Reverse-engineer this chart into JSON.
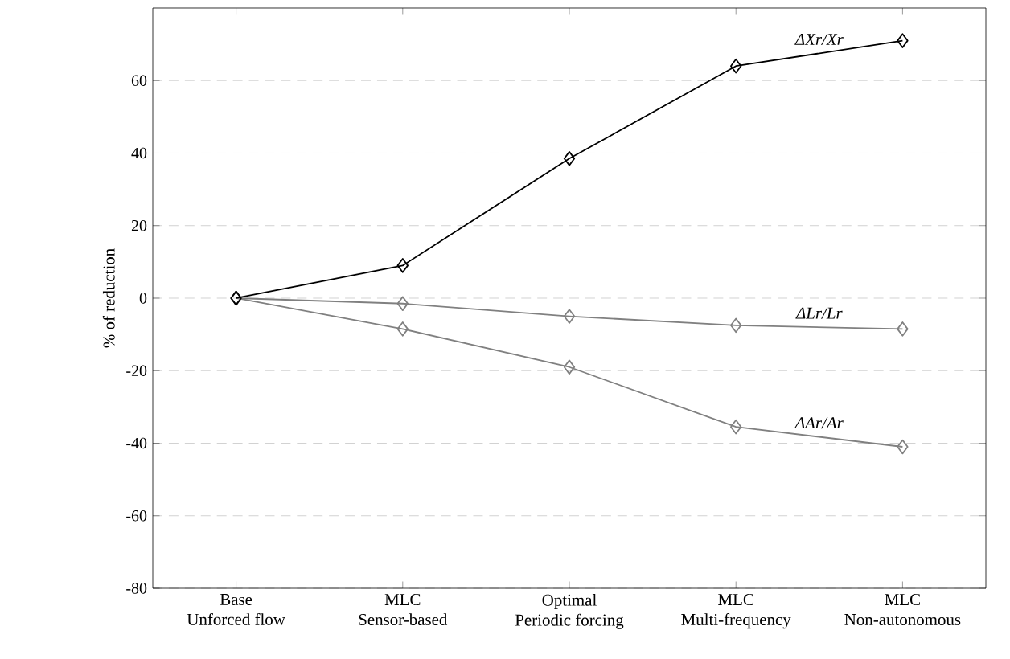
{
  "chart_data": {
    "type": "line",
    "ylabel": "% of reduction",
    "categories": [
      "Base\nUnforced flow",
      "MLC\nSensor-based",
      "Optimal\nPeriodic forcing",
      "MLC\nMulti-frequency",
      "MLC\nNon-autonomous"
    ],
    "series": [
      {
        "name": "ΔXr/Xr",
        "color": "#000000",
        "values": [
          0,
          9,
          38.5,
          64,
          71
        ]
      },
      {
        "name": "ΔLr/Lr",
        "color": "#808080",
        "values": [
          0,
          -1.5,
          -5,
          -7.5,
          -8.5
        ]
      },
      {
        "name": "ΔAr/Ar",
        "color": "#808080",
        "values": [
          0,
          -8.5,
          -19,
          -35.5,
          -41
        ]
      }
    ],
    "ylim": [
      -80,
      80
    ],
    "yticks": [
      -80,
      -60,
      -40,
      -20,
      0,
      20,
      40,
      60
    ],
    "grid": "y",
    "marker": "diamond",
    "line_style": "solid",
    "legend": false
  }
}
